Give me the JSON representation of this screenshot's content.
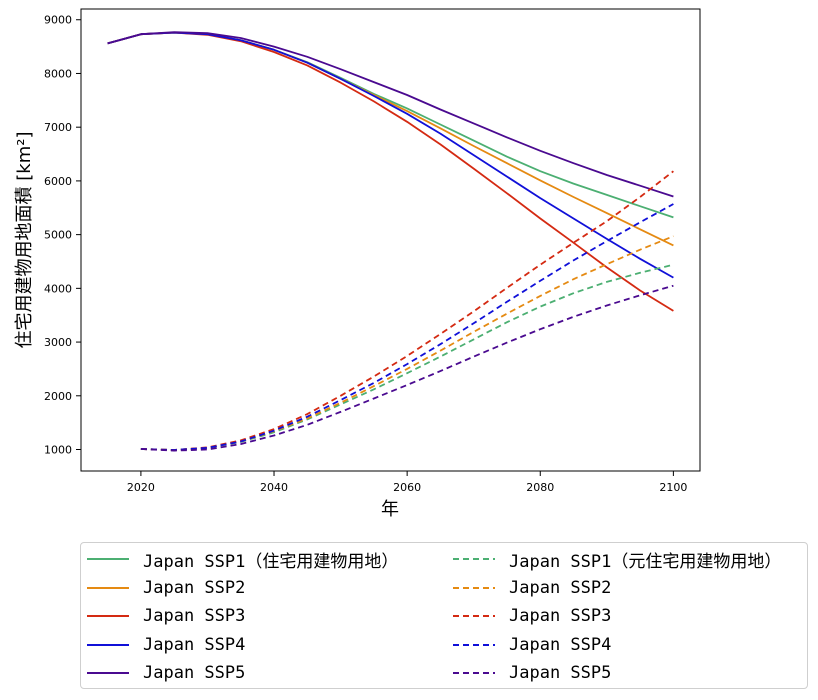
{
  "chart_data": {
    "type": "line",
    "xlabel": "年",
    "ylabel": "住宅用建物用地面積 [km²]",
    "xlim": [
      2011,
      2104
    ],
    "ylim": [
      600,
      9200
    ],
    "xticks": [
      2020,
      2040,
      2060,
      2080,
      2100
    ],
    "yticks": [
      1000,
      2000,
      3000,
      4000,
      5000,
      6000,
      7000,
      8000,
      9000
    ],
    "grid": false,
    "legend_position": "below",
    "series": [
      {
        "name": "Japan SSP1（住宅用建物用地）",
        "color": "#4caf72",
        "dash": false,
        "x": [
          2015,
          2020,
          2025,
          2030,
          2035,
          2040,
          2045,
          2050,
          2055,
          2060,
          2065,
          2070,
          2075,
          2080,
          2085,
          2090,
          2095,
          2100
        ],
        "values": [
          8560,
          8730,
          8760,
          8730,
          8620,
          8440,
          8210,
          7920,
          7620,
          7350,
          7050,
          6750,
          6450,
          6180,
          5950,
          5740,
          5530,
          5320
        ]
      },
      {
        "name": "Japan SSP2",
        "color": "#e58a12",
        "dash": false,
        "x": [
          2015,
          2020,
          2025,
          2030,
          2035,
          2040,
          2045,
          2050,
          2055,
          2060,
          2065,
          2070,
          2075,
          2080,
          2085,
          2090,
          2095,
          2100
        ],
        "values": [
          8560,
          8730,
          8760,
          8730,
          8620,
          8440,
          8200,
          7900,
          7600,
          7300,
          6980,
          6650,
          6330,
          6010,
          5700,
          5400,
          5100,
          4800
        ]
      },
      {
        "name": "Japan SSP3",
        "color": "#d42a12",
        "dash": false,
        "x": [
          2015,
          2020,
          2025,
          2030,
          2035,
          2040,
          2045,
          2050,
          2055,
          2060,
          2065,
          2070,
          2075,
          2080,
          2085,
          2090,
          2095,
          2100
        ],
        "values": [
          8560,
          8730,
          8760,
          8720,
          8600,
          8400,
          8150,
          7830,
          7480,
          7100,
          6680,
          6230,
          5770,
          5300,
          4850,
          4390,
          3960,
          3580
        ]
      },
      {
        "name": "Japan SSP4",
        "color": "#1010d8",
        "dash": false,
        "x": [
          2015,
          2020,
          2025,
          2030,
          2035,
          2040,
          2045,
          2050,
          2055,
          2060,
          2065,
          2070,
          2075,
          2080,
          2085,
          2090,
          2095,
          2100
        ],
        "values": [
          8560,
          8730,
          8760,
          8730,
          8620,
          8440,
          8200,
          7900,
          7580,
          7250,
          6880,
          6480,
          6080,
          5680,
          5300,
          4920,
          4550,
          4200
        ]
      },
      {
        "name": "Japan SSP5",
        "color": "#4a0a90",
        "dash": false,
        "x": [
          2015,
          2020,
          2025,
          2030,
          2035,
          2040,
          2045,
          2050,
          2055,
          2060,
          2065,
          2070,
          2075,
          2080,
          2085,
          2090,
          2095,
          2100
        ],
        "values": [
          8560,
          8730,
          8770,
          8750,
          8660,
          8500,
          8310,
          8080,
          7840,
          7600,
          7330,
          7070,
          6810,
          6560,
          6330,
          6110,
          5910,
          5710
        ]
      },
      {
        "name": "Japan SSP1（元住宅用建物用地）",
        "color": "#4caf72",
        "dash": true,
        "x": [
          2020,
          2025,
          2030,
          2035,
          2040,
          2045,
          2050,
          2055,
          2060,
          2065,
          2070,
          2075,
          2080,
          2085,
          2090,
          2095,
          2100
        ],
        "values": [
          1010,
          990,
          1030,
          1140,
          1320,
          1560,
          1840,
          2120,
          2420,
          2730,
          3050,
          3370,
          3660,
          3910,
          4120,
          4290,
          4440
        ]
      },
      {
        "name": "Japan SSP2",
        "color": "#e58a12",
        "dash": true,
        "x": [
          2020,
          2025,
          2030,
          2035,
          2040,
          2045,
          2050,
          2055,
          2060,
          2065,
          2070,
          2075,
          2080,
          2085,
          2090,
          2095,
          2100
        ],
        "values": [
          1010,
          990,
          1030,
          1150,
          1340,
          1580,
          1870,
          2180,
          2500,
          2840,
          3190,
          3530,
          3860,
          4170,
          4450,
          4720,
          4970
        ]
      },
      {
        "name": "Japan SSP3",
        "color": "#d42a12",
        "dash": true,
        "x": [
          2020,
          2025,
          2030,
          2035,
          2040,
          2045,
          2050,
          2055,
          2060,
          2065,
          2070,
          2075,
          2080,
          2085,
          2090,
          2095,
          2100
        ],
        "values": [
          1010,
          990,
          1040,
          1170,
          1380,
          1660,
          2000,
          2360,
          2740,
          3150,
          3570,
          4010,
          4440,
          4850,
          5250,
          5700,
          6180
        ]
      },
      {
        "name": "Japan SSP4",
        "color": "#1010d8",
        "dash": true,
        "x": [
          2020,
          2025,
          2030,
          2035,
          2040,
          2045,
          2050,
          2055,
          2060,
          2065,
          2070,
          2075,
          2080,
          2085,
          2090,
          2095,
          2100
        ],
        "values": [
          1010,
          990,
          1030,
          1150,
          1350,
          1610,
          1920,
          2240,
          2590,
          2960,
          3350,
          3750,
          4140,
          4520,
          4880,
          5230,
          5570
        ]
      },
      {
        "name": "Japan SSP5",
        "color": "#4a0a90",
        "dash": true,
        "x": [
          2020,
          2025,
          2030,
          2035,
          2040,
          2045,
          2050,
          2055,
          2060,
          2065,
          2070,
          2075,
          2080,
          2085,
          2090,
          2095,
          2100
        ],
        "values": [
          1010,
          980,
          1000,
          1100,
          1260,
          1460,
          1700,
          1950,
          2200,
          2460,
          2730,
          2990,
          3240,
          3470,
          3680,
          3870,
          4050
        ]
      }
    ]
  }
}
